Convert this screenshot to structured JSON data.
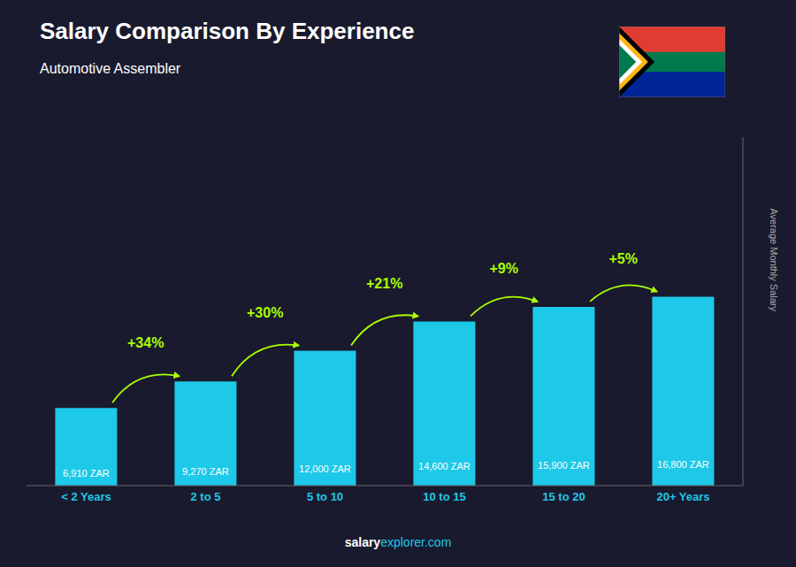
{
  "chart_data": {
    "type": "bar",
    "title": "Salary Comparison By Experience",
    "subtitle": "Automotive Assembler",
    "categories": [
      "< 2 Years",
      "2 to 5",
      "5 to 10",
      "10 to 15",
      "15 to 20",
      "20+ Years"
    ],
    "values": [
      6910,
      9270,
      12000,
      14600,
      15900,
      16800
    ],
    "value_labels": [
      "6,910 ZAR",
      "9,270 ZAR",
      "12,000 ZAR",
      "14,600 ZAR",
      "15,900 ZAR",
      "16,800 ZAR"
    ],
    "data_labels": true,
    "color": "#1EC8E8",
    "ylabel": "Average Monthly Salary",
    "ylim": [
      0,
      31000
    ],
    "tick_labels": "x",
    "grid": false,
    "annotations": [
      "+34%",
      "+30%",
      "+21%",
      "+9%",
      "+5%"
    ],
    "annotation_color": "#AAFF00",
    "footer": [
      "salary",
      "explorer.com"
    ]
  }
}
